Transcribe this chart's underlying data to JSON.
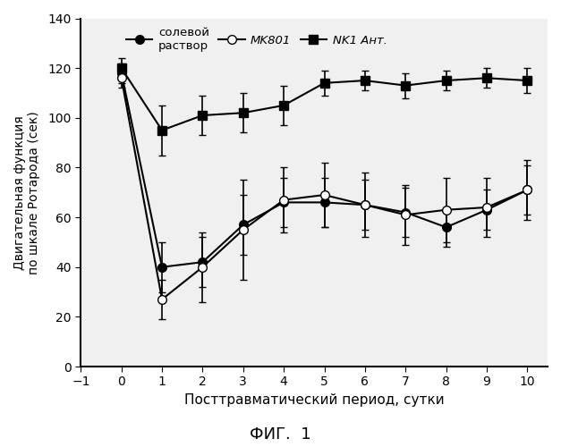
{
  "x": [
    0,
    1,
    2,
    3,
    4,
    5,
    6,
    7,
    8,
    9,
    10
  ],
  "saline_y": [
    118,
    40,
    42,
    57,
    66,
    66,
    65,
    62,
    56,
    63,
    71
  ],
  "saline_err": [
    4,
    10,
    10,
    12,
    10,
    10,
    10,
    10,
    8,
    8,
    10
  ],
  "mk801_y": [
    116,
    27,
    40,
    55,
    67,
    69,
    65,
    61,
    63,
    64,
    71
  ],
  "mk801_err": [
    4,
    8,
    14,
    20,
    13,
    13,
    13,
    12,
    13,
    12,
    12
  ],
  "nk1_y": [
    120,
    95,
    101,
    102,
    105,
    114,
    115,
    113,
    115,
    116,
    115
  ],
  "nk1_err": [
    4,
    10,
    8,
    8,
    8,
    5,
    4,
    5,
    4,
    4,
    5
  ],
  "xlabel": "Посттравматический период, сутки",
  "ylabel": "Двигательная функция\nпо шкале Ротарода (сек)",
  "fig_label": "ФИГ.  1",
  "legend_saline": "солевой\nраствор",
  "legend_mk801": "MK801",
  "legend_nk1_italic": "NK1",
  "legend_nk1_normal": " Ант.",
  "xlim": [
    -1,
    10.5
  ],
  "ylim": [
    0,
    140
  ],
  "xticks": [
    -1,
    0,
    1,
    2,
    3,
    4,
    5,
    6,
    7,
    8,
    9,
    10
  ],
  "yticks": [
    0,
    20,
    40,
    60,
    80,
    100,
    120,
    140
  ],
  "bg_color": "#f0f0f0"
}
